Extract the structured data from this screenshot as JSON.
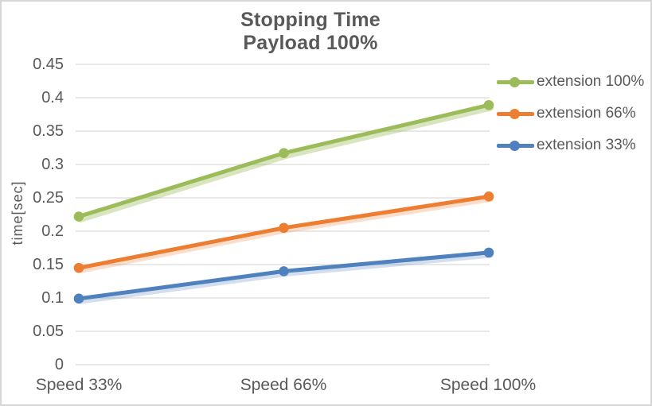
{
  "chart_data": {
    "type": "line",
    "title": "Stopping Time",
    "subtitle": "Payload 100%",
    "ylabel": "time[sec]",
    "xlabel": "",
    "categories": [
      "Speed 33%",
      "Speed 66%",
      "Speed 100%"
    ],
    "series": [
      {
        "name": "extension 100%",
        "color": "#9CBB59",
        "values": [
          0.222,
          0.317,
          0.389
        ]
      },
      {
        "name": "extension 66%",
        "color": "#ED7D31",
        "values": [
          0.145,
          0.205,
          0.252
        ]
      },
      {
        "name": "extension 33%",
        "color": "#4E81BD",
        "values": [
          0.099,
          0.14,
          0.168
        ]
      }
    ],
    "ylim": [
      0,
      0.45
    ],
    "ytick_step": 0.05,
    "yticks_labels": [
      "0.45",
      "0.4",
      "0.35",
      "0.3",
      "0.25",
      "0.2",
      "0.15",
      "0.1",
      "0.05",
      "0"
    ],
    "grid": true,
    "legend_position": "right",
    "marker": "circle"
  },
  "colors": {
    "text": "#595959",
    "grid": "#D9D9D9",
    "background": "#FFFFFF",
    "border": "#D6D6D6"
  }
}
